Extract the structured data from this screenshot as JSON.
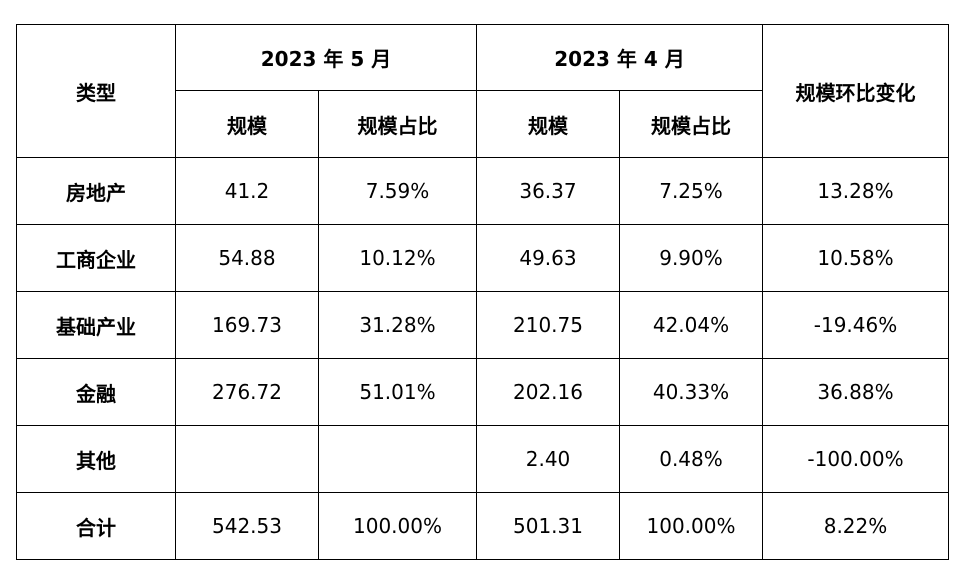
{
  "header": {
    "type_label": "类型",
    "may_label": "2023 年 5 月",
    "apr_label": "2023 年 4 月",
    "change_label": "规模环比变化",
    "scale_label": "规模",
    "share_label": "规模占比"
  },
  "rows": [
    {
      "type": "房地产",
      "may_scale": "41.2",
      "may_share": "7.59%",
      "apr_scale": "36.37",
      "apr_share": "7.25%",
      "change": "13.28%"
    },
    {
      "type": "工商企业",
      "may_scale": "54.88",
      "may_share": "10.12%",
      "apr_scale": "49.63",
      "apr_share": "9.90%",
      "change": "10.58%"
    },
    {
      "type": "基础产业",
      "may_scale": "169.73",
      "may_share": "31.28%",
      "apr_scale": "210.75",
      "apr_share": "42.04%",
      "change": "-19.46%"
    },
    {
      "type": "金融",
      "may_scale": "276.72",
      "may_share": "51.01%",
      "apr_scale": "202.16",
      "apr_share": "40.33%",
      "change": "36.88%"
    },
    {
      "type": "其他",
      "may_scale": "",
      "may_share": "",
      "apr_scale": "2.40",
      "apr_share": "0.48%",
      "change": "-100.00%"
    },
    {
      "type": "合计",
      "may_scale": "542.53",
      "may_share": "100.00%",
      "apr_scale": "501.31",
      "apr_share": "100.00%",
      "change": "8.22%"
    }
  ]
}
